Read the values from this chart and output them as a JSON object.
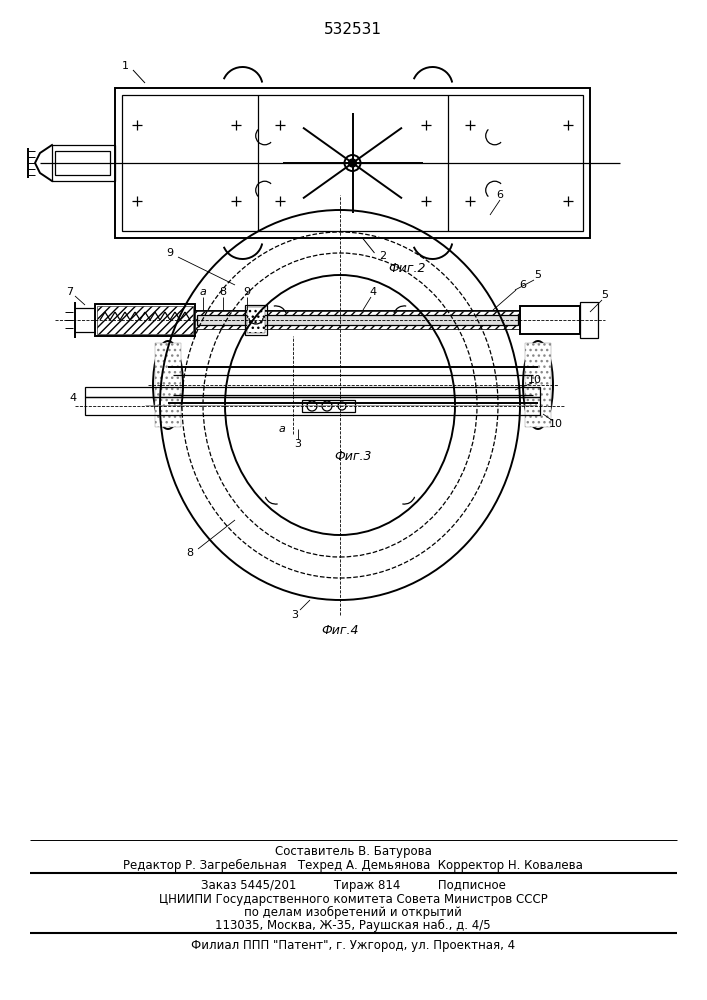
{
  "patent_number": "532531",
  "fig2_label": "Фиг.2",
  "fig3_label": "Фиг.3",
  "fig4_label": "Фиг.4",
  "bg_color": "#ffffff",
  "line_color": "#000000",
  "footer_line1": "Составитель В. Батурова",
  "footer_line2": "Редактор Р. Загребельная   Техред А. Демьянова  Корректор Н. Ковалева",
  "footer_line3": "Заказ 5445/201          Тираж 814          Подписное",
  "footer_line4": "ЦНИИПИ Государственного комитета Совета Министров СССР",
  "footer_line5": "по делам изобретений и открытий",
  "footer_line6": "113035, Москва, Ж-35, Раушская наб., д. 4/5",
  "footer_line7": "Филиал ППП \"Патент\", г. Ужгород, ул. Проектная, 4",
  "label_1": "1",
  "label_2": "2",
  "label_3": "3",
  "label_4": "4",
  "label_5": "5",
  "label_6": "6",
  "label_7": "7",
  "label_8": "8",
  "label_9": "9",
  "label_10": "10",
  "label_a": "а"
}
